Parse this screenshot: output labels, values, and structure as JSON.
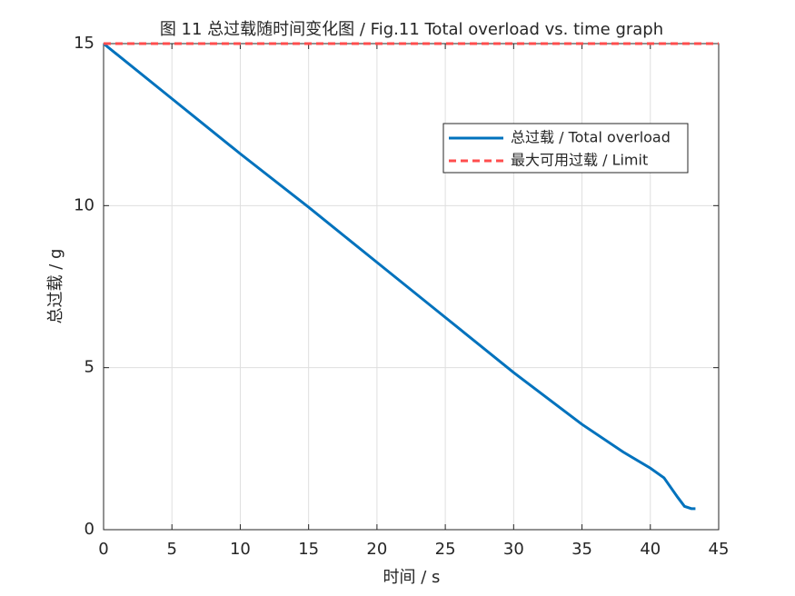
{
  "chart_data": {
    "type": "line",
    "title": "图 11 总过载随时间变化图 / Fig.11 Total overload vs. time graph",
    "x_label": "时间 / s",
    "y_label": "总过载 / g",
    "xlim": [
      0,
      45
    ],
    "xticks": [
      0,
      5,
      10,
      15,
      20,
      25,
      30,
      35,
      40,
      45
    ],
    "ylim": [
      0,
      15
    ],
    "yticks": [
      0,
      5,
      10,
      15
    ],
    "grid": true,
    "legend": "upper right",
    "series": [
      {
        "name": "总过载 / Total overload",
        "color": "#0072bd",
        "style": "solid",
        "x": [
          0,
          5,
          10,
          15,
          20,
          25,
          30,
          35,
          38,
          40,
          41,
          42,
          42.5,
          43,
          43.3
        ],
        "values": [
          15,
          13.3,
          11.6,
          9.95,
          8.25,
          6.55,
          4.85,
          3.25,
          2.4,
          1.9,
          1.6,
          1.0,
          0.72,
          0.65,
          0.65
        ]
      },
      {
        "name": "最大可用过载 / Limit",
        "color": "#ff4d4d",
        "style": "dashed",
        "x": [
          0,
          45
        ],
        "values": [
          15,
          15
        ]
      }
    ]
  }
}
